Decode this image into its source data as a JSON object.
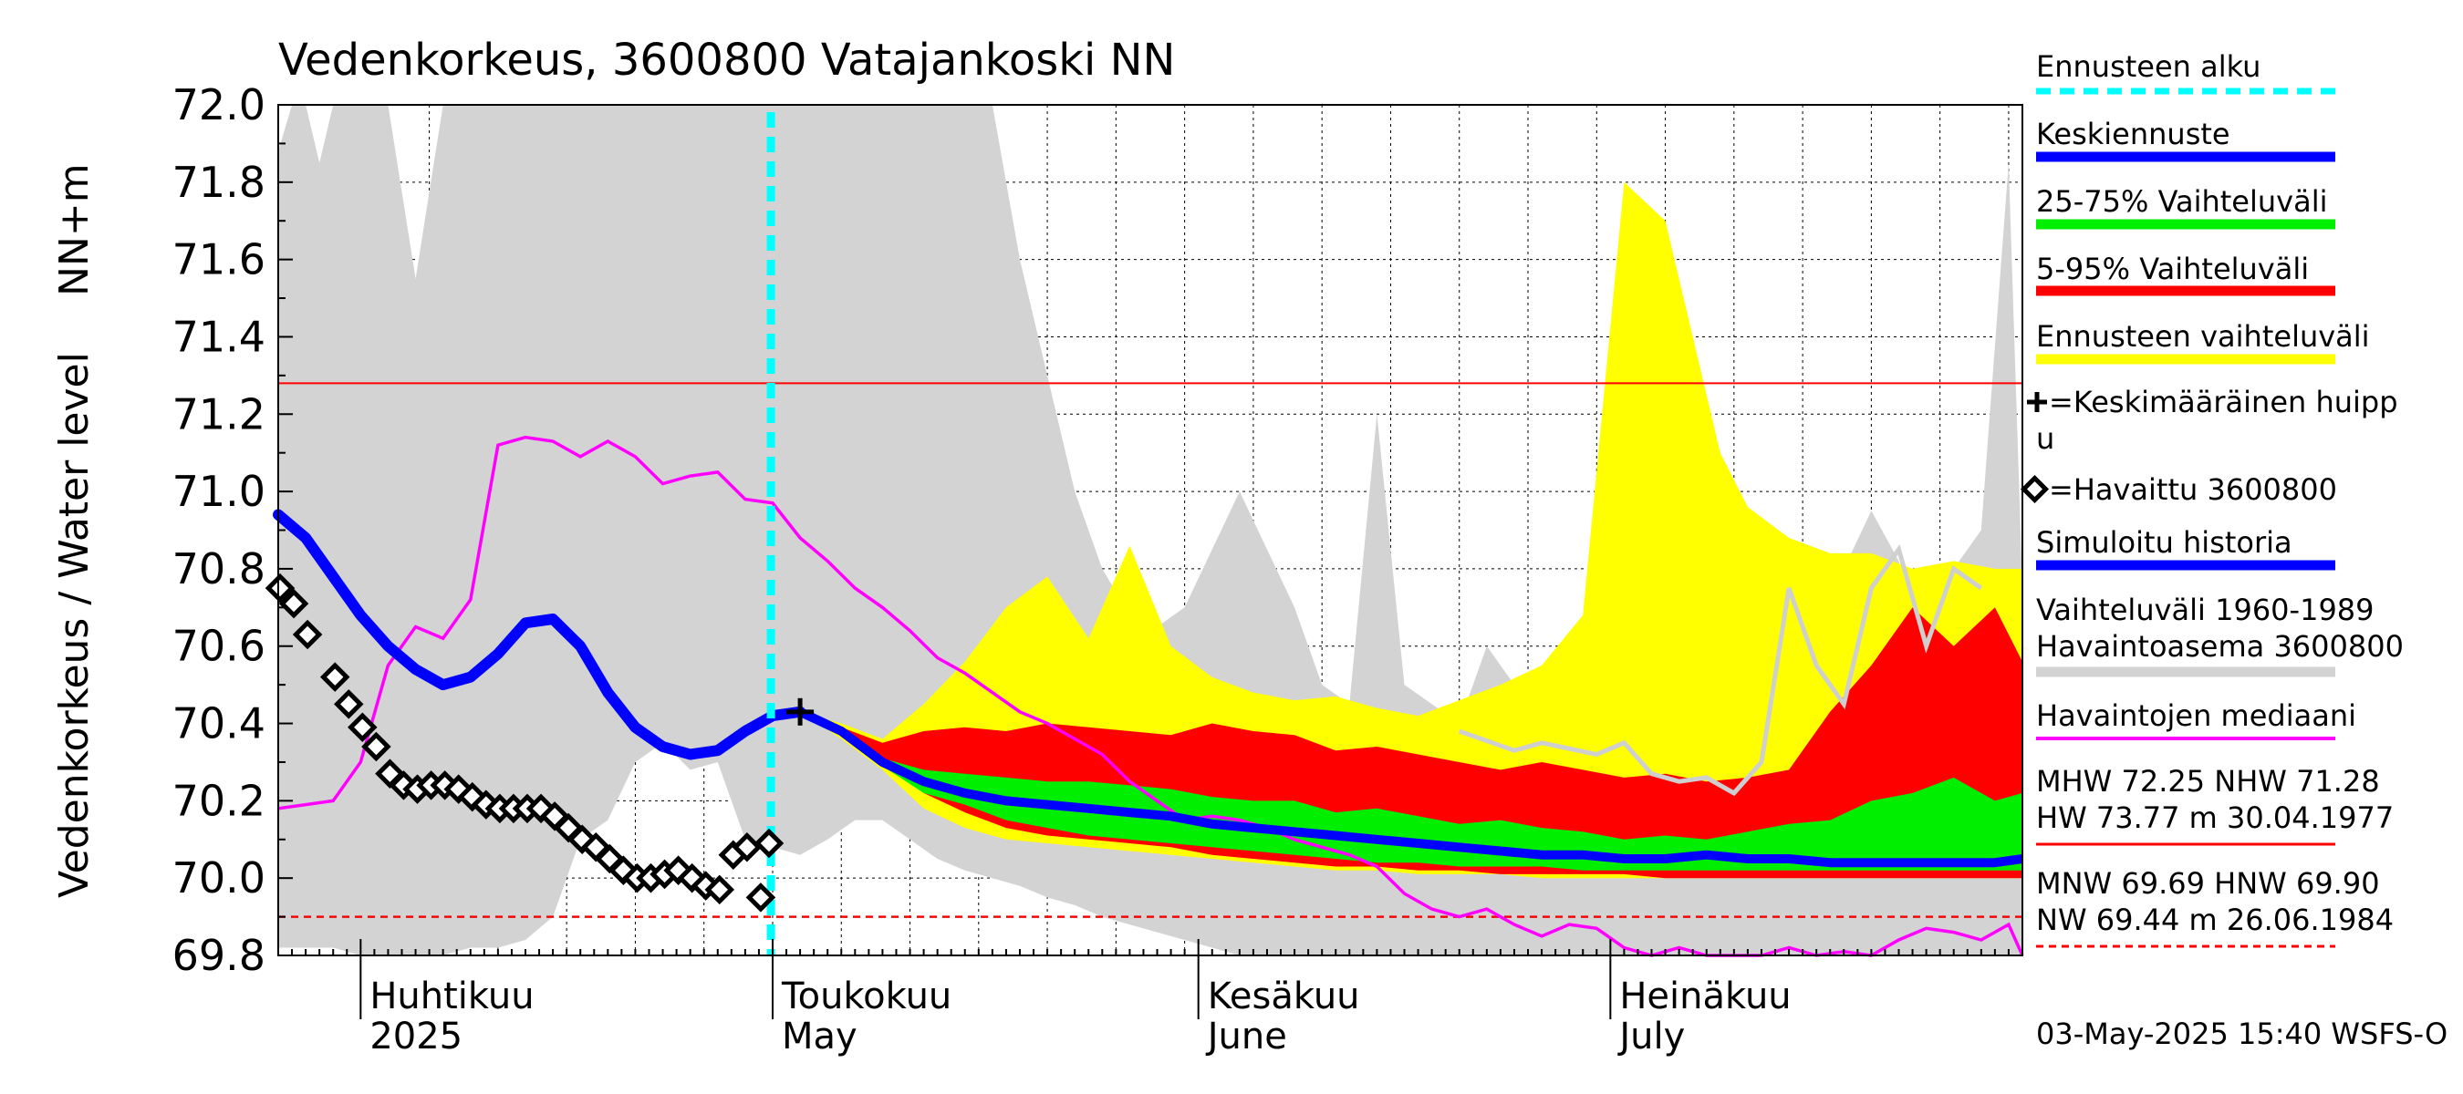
{
  "chart_data": {
    "type": "area",
    "title": "Vedenkorkeus, 3600800 Vatajankoski NN",
    "ylabel_left": "Vedenkorkeus / Water level",
    "ylabel_unit": "NN+m",
    "ylim": [
      69.8,
      72.0
    ],
    "xlim": [
      "2025-03-26",
      "2025-07-31"
    ],
    "y_ticks": [
      "69.8",
      "70.0",
      "70.2",
      "70.4",
      "70.6",
      "70.8",
      "71.0",
      "71.2",
      "71.4",
      "71.6",
      "71.8",
      "72.0"
    ],
    "month_labels": [
      {
        "fi": "Huhtikuu",
        "en": "2025",
        "date": "2025-04-01"
      },
      {
        "fi": "Toukokuu",
        "en": "May",
        "date": "2025-05-01"
      },
      {
        "fi": "Kesäkuu",
        "en": "June",
        "date": "2025-06-01"
      },
      {
        "fi": "Heinäkuu",
        "en": "July",
        "date": "2025-07-01"
      }
    ],
    "grid": true,
    "forecast_start": "2025-05-03",
    "reference_lines": {
      "mhw": 71.28,
      "mnw": 69.9
    },
    "legend": {
      "forecast_start": "Ennusteen alku",
      "mean_forecast": "Keskiennuste",
      "band_25_75": "25-75% Vaihteluväli",
      "band_5_95": "5-95% Vaihteluväli",
      "band_forecast": "Ennusteen vaihteluväli",
      "mean_peak_line1": "=Keskimääräinen huipp",
      "mean_peak_line2": "u",
      "observed": "=Havaittu 3600800",
      "simulated": "Simuloitu historia",
      "hist_range_line1": "Vaihteluväli 1960-1989",
      "hist_range_line2": " Havaintoasema 3600800",
      "median": "Havaintojen mediaani",
      "stats_line1": "MHW  72.25 NHW  71.28",
      "stats_line2": "HW  73.77 m 30.04.1977",
      "stats_line3": "MNW  69.69 HNW  69.90",
      "stats_line4": "NW  69.44 m 26.06.1984"
    },
    "footer": "03-May-2025 15:40 WSFS-O",
    "colors": {
      "forecast_start": "#00ffff",
      "mean_forecast": "#0000ff",
      "band_25_75": "#00ee00",
      "band_5_95": "#ff0000",
      "band_forecast": "#ffff00",
      "hist_range": "#d3d3d3",
      "median": "#ff00ff",
      "observed": "#000000"
    },
    "mean_peak": {
      "date": "2025-05-03",
      "value": 70.43
    },
    "series": {
      "hist_range": {
        "dates": [
          "2025-03-26",
          "2025-03-27",
          "2025-03-28",
          "2025-03-29",
          "2025-03-30",
          "2025-04-01",
          "2025-04-03",
          "2025-04-05",
          "2025-04-07",
          "2025-04-09",
          "2025-04-11",
          "2025-04-13",
          "2025-04-15",
          "2025-04-17",
          "2025-04-19",
          "2025-04-21",
          "2025-04-23",
          "2025-04-25",
          "2025-04-27",
          "2025-04-29",
          "2025-05-01",
          "2025-05-03",
          "2025-05-05",
          "2025-05-07",
          "2025-05-09",
          "2025-05-11",
          "2025-05-13",
          "2025-05-15",
          "2025-05-17",
          "2025-05-19",
          "2025-05-21",
          "2025-05-23",
          "2025-05-25",
          "2025-05-27",
          "2025-05-29",
          "2025-05-31",
          "2025-06-02",
          "2025-06-04",
          "2025-06-06",
          "2025-06-08",
          "2025-06-10",
          "2025-06-12",
          "2025-06-14",
          "2025-06-16",
          "2025-06-18",
          "2025-06-20",
          "2025-06-22",
          "2025-06-24",
          "2025-06-26",
          "2025-06-28",
          "2025-06-30",
          "2025-07-02",
          "2025-07-04",
          "2025-07-06",
          "2025-07-08",
          "2025-07-10",
          "2025-07-12",
          "2025-07-14",
          "2025-07-16",
          "2025-07-18",
          "2025-07-20",
          "2025-07-22",
          "2025-07-24",
          "2025-07-26",
          "2025-07-28",
          "2025-07-30",
          "2025-07-31"
        ],
        "upper": [
          71.88,
          72.0,
          72.0,
          71.85,
          72.0,
          72.0,
          72.0,
          71.55,
          72.0,
          72.0,
          72.0,
          72.0,
          72.0,
          72.0,
          72.0,
          72.0,
          72.0,
          72.0,
          72.0,
          72.0,
          72.0,
          72.0,
          72.0,
          72.0,
          72.0,
          72.0,
          72.0,
          72.0,
          72.0,
          71.6,
          71.3,
          71.0,
          70.8,
          70.68,
          70.65,
          70.7,
          70.85,
          71.0,
          70.85,
          70.7,
          70.5,
          70.45,
          71.2,
          70.5,
          70.45,
          70.4,
          70.6,
          70.5,
          70.45,
          70.5,
          70.45,
          70.35,
          70.3,
          70.32,
          70.35,
          70.45,
          70.85,
          70.6,
          70.55,
          70.8,
          70.95,
          70.82,
          70.6,
          70.8,
          70.9,
          71.85,
          70.75
        ],
        "lower": [
          69.82,
          69.82,
          69.82,
          69.82,
          69.82,
          69.8,
          69.8,
          69.8,
          69.8,
          69.82,
          69.82,
          69.84,
          69.9,
          70.1,
          70.15,
          70.3,
          70.35,
          70.28,
          70.3,
          70.1,
          70.08,
          70.06,
          70.1,
          70.15,
          70.15,
          70.1,
          70.05,
          70.02,
          70.0,
          69.98,
          69.95,
          69.93,
          69.9,
          69.88,
          69.86,
          69.84,
          69.82,
          69.8,
          69.8,
          69.8,
          69.8,
          69.8,
          69.8,
          69.8,
          69.8,
          69.8,
          69.8,
          69.8,
          69.8,
          69.8,
          69.8,
          69.8,
          69.8,
          69.8,
          69.8,
          69.8,
          69.8,
          69.8,
          69.8,
          69.8,
          69.8,
          69.8,
          69.8,
          69.8,
          69.8,
          69.8,
          69.8
        ]
      },
      "hist_station": {
        "dates": [
          "2025-06-20",
          "2025-06-24",
          "2025-06-26",
          "2025-06-30",
          "2025-07-02",
          "2025-07-04",
          "2025-07-06",
          "2025-07-08",
          "2025-07-10",
          "2025-07-12",
          "2025-07-14",
          "2025-07-16",
          "2025-07-18",
          "2025-07-20",
          "2025-07-22",
          "2025-07-24",
          "2025-07-26",
          "2025-07-28"
        ],
        "values": [
          70.38,
          70.33,
          70.35,
          70.32,
          70.35,
          70.27,
          70.25,
          70.26,
          70.22,
          70.3,
          70.75,
          70.55,
          70.45,
          70.75,
          70.85,
          70.6,
          70.8,
          70.75
        ]
      },
      "forecast_band": {
        "dates": [
          "2025-05-03",
          "2025-05-06",
          "2025-05-09",
          "2025-05-12",
          "2025-05-15",
          "2025-05-18",
          "2025-05-21",
          "2025-05-24",
          "2025-05-27",
          "2025-05-30",
          "2025-06-02",
          "2025-06-05",
          "2025-06-08",
          "2025-06-11",
          "2025-06-14",
          "2025-06-17",
          "2025-06-20",
          "2025-06-23",
          "2025-06-26",
          "2025-06-29",
          "2025-07-02",
          "2025-07-05",
          "2025-07-07",
          "2025-07-09",
          "2025-07-11",
          "2025-07-14",
          "2025-07-17",
          "2025-07-20",
          "2025-07-23",
          "2025-07-26",
          "2025-07-29",
          "2025-07-31"
        ],
        "upper": [
          70.43,
          70.4,
          70.36,
          70.45,
          70.56,
          70.7,
          70.78,
          70.62,
          70.86,
          70.6,
          70.52,
          70.48,
          70.46,
          70.47,
          70.44,
          70.42,
          70.46,
          70.5,
          70.55,
          70.68,
          71.8,
          71.7,
          71.4,
          71.1,
          70.96,
          70.88,
          70.84,
          70.84,
          70.8,
          70.82,
          70.8,
          70.8
        ],
        "lower": [
          70.43,
          70.36,
          70.28,
          70.18,
          70.13,
          70.1,
          70.09,
          70.08,
          70.07,
          70.06,
          70.05,
          70.04,
          70.03,
          70.02,
          70.02,
          70.01,
          70.01,
          70.01,
          70.0,
          70.0,
          70.0,
          70.0,
          70.0,
          70.0,
          70.0,
          70.0,
          70.0,
          70.0,
          70.0,
          70.0,
          70.0,
          70.0
        ]
      },
      "band_5_95": {
        "dates": [
          "2025-05-03",
          "2025-05-06",
          "2025-05-09",
          "2025-05-12",
          "2025-05-15",
          "2025-05-18",
          "2025-05-21",
          "2025-05-24",
          "2025-05-27",
          "2025-05-30",
          "2025-06-02",
          "2025-06-05",
          "2025-06-08",
          "2025-06-11",
          "2025-06-14",
          "2025-06-17",
          "2025-06-20",
          "2025-06-23",
          "2025-06-26",
          "2025-06-29",
          "2025-07-02",
          "2025-07-05",
          "2025-07-08",
          "2025-07-11",
          "2025-07-14",
          "2025-07-17",
          "2025-07-20",
          "2025-07-23",
          "2025-07-26",
          "2025-07-29",
          "2025-07-31"
        ],
        "upper": [
          70.43,
          70.39,
          70.35,
          70.38,
          70.39,
          70.38,
          70.4,
          70.39,
          70.38,
          70.37,
          70.4,
          70.38,
          70.37,
          70.33,
          70.34,
          70.32,
          70.3,
          70.28,
          70.3,
          70.28,
          70.26,
          70.27,
          70.25,
          70.26,
          70.28,
          70.43,
          70.55,
          70.7,
          70.6,
          70.7,
          70.56
        ],
        "lower": [
          70.43,
          70.37,
          70.3,
          70.22,
          70.17,
          70.13,
          70.11,
          70.1,
          70.09,
          70.08,
          70.06,
          70.05,
          70.04,
          70.03,
          70.03,
          70.02,
          70.02,
          70.01,
          70.01,
          70.01,
          70.01,
          70.0,
          70.0,
          70.0,
          70.0,
          70.0,
          70.0,
          70.0,
          70.0,
          70.0,
          70.0
        ]
      },
      "band_25_75": {
        "dates": [
          "2025-05-03",
          "2025-05-06",
          "2025-05-09",
          "2025-05-12",
          "2025-05-15",
          "2025-05-18",
          "2025-05-21",
          "2025-05-24",
          "2025-05-27",
          "2025-05-30",
          "2025-06-02",
          "2025-06-05",
          "2025-06-08",
          "2025-06-11",
          "2025-06-14",
          "2025-06-17",
          "2025-06-20",
          "2025-06-23",
          "2025-06-26",
          "2025-06-29",
          "2025-07-02",
          "2025-07-05",
          "2025-07-08",
          "2025-07-11",
          "2025-07-14",
          "2025-07-17",
          "2025-07-20",
          "2025-07-23",
          "2025-07-26",
          "2025-07-29",
          "2025-07-31"
        ],
        "upper": [
          70.43,
          70.38,
          70.31,
          70.28,
          70.27,
          70.26,
          70.25,
          70.25,
          70.24,
          70.23,
          70.21,
          70.2,
          70.2,
          70.17,
          70.18,
          70.16,
          70.14,
          70.15,
          70.13,
          70.12,
          70.1,
          70.11,
          70.1,
          70.12,
          70.14,
          70.15,
          70.2,
          70.22,
          70.26,
          70.2,
          70.22
        ],
        "lower": [
          70.43,
          70.37,
          70.29,
          70.22,
          70.19,
          70.15,
          70.13,
          70.11,
          70.1,
          70.09,
          70.08,
          70.07,
          70.06,
          70.05,
          70.04,
          70.04,
          70.03,
          70.03,
          70.03,
          70.02,
          70.02,
          70.02,
          70.02,
          70.02,
          70.02,
          70.02,
          70.02,
          70.02,
          70.02,
          70.02,
          70.02
        ]
      },
      "mean_forecast": {
        "dates": [
          "2025-05-03",
          "2025-05-06",
          "2025-05-09",
          "2025-05-12",
          "2025-05-15",
          "2025-05-18",
          "2025-05-21",
          "2025-05-24",
          "2025-05-27",
          "2025-05-30",
          "2025-06-02",
          "2025-06-05",
          "2025-06-08",
          "2025-06-11",
          "2025-06-14",
          "2025-06-17",
          "2025-06-20",
          "2025-06-23",
          "2025-06-26",
          "2025-06-29",
          "2025-07-02",
          "2025-07-05",
          "2025-07-08",
          "2025-07-11",
          "2025-07-14",
          "2025-07-17",
          "2025-07-20",
          "2025-07-23",
          "2025-07-26",
          "2025-07-29",
          "2025-07-31"
        ],
        "values": [
          70.43,
          70.38,
          70.3,
          70.25,
          70.22,
          70.2,
          70.19,
          70.18,
          70.17,
          70.16,
          70.14,
          70.13,
          70.12,
          70.11,
          70.1,
          70.09,
          70.08,
          70.07,
          70.06,
          70.06,
          70.05,
          70.05,
          70.06,
          70.05,
          70.05,
          70.04,
          70.04,
          70.04,
          70.04,
          70.04,
          70.05
        ]
      },
      "simulated": {
        "dates": [
          "2025-03-26",
          "2025-03-28",
          "2025-03-30",
          "2025-04-01",
          "2025-04-03",
          "2025-04-05",
          "2025-04-07",
          "2025-04-09",
          "2025-04-11",
          "2025-04-13",
          "2025-04-15",
          "2025-04-17",
          "2025-04-19",
          "2025-04-21",
          "2025-04-23",
          "2025-04-25",
          "2025-04-27",
          "2025-04-29",
          "2025-05-01",
          "2025-05-03"
        ],
        "values": [
          70.94,
          70.88,
          70.78,
          70.68,
          70.6,
          70.54,
          70.5,
          70.52,
          70.58,
          70.66,
          70.67,
          70.6,
          70.48,
          70.39,
          70.34,
          70.32,
          70.33,
          70.38,
          70.42,
          70.43
        ]
      },
      "median": {
        "dates": [
          "2025-03-26",
          "2025-03-28",
          "2025-03-30",
          "2025-04-01",
          "2025-04-03",
          "2025-04-05",
          "2025-04-07",
          "2025-04-09",
          "2025-04-11",
          "2025-04-13",
          "2025-04-15",
          "2025-04-17",
          "2025-04-19",
          "2025-04-21",
          "2025-04-23",
          "2025-04-25",
          "2025-04-27",
          "2025-04-29",
          "2025-05-01",
          "2025-05-03",
          "2025-05-05",
          "2025-05-07",
          "2025-05-09",
          "2025-05-11",
          "2025-05-13",
          "2025-05-15",
          "2025-05-17",
          "2025-05-19",
          "2025-05-21",
          "2025-05-23",
          "2025-05-25",
          "2025-05-27",
          "2025-05-29",
          "2025-05-31",
          "2025-06-02",
          "2025-06-04",
          "2025-06-06",
          "2025-06-08",
          "2025-06-10",
          "2025-06-12",
          "2025-06-14",
          "2025-06-16",
          "2025-06-18",
          "2025-06-20",
          "2025-06-22",
          "2025-06-24",
          "2025-06-26",
          "2025-06-28",
          "2025-06-30",
          "2025-07-02",
          "2025-07-04",
          "2025-07-06",
          "2025-07-08",
          "2025-07-10",
          "2025-07-12",
          "2025-07-14",
          "2025-07-16",
          "2025-07-18",
          "2025-07-20",
          "2025-07-22",
          "2025-07-24",
          "2025-07-26",
          "2025-07-28",
          "2025-07-30",
          "2025-07-31"
        ],
        "values": [
          70.18,
          70.19,
          70.2,
          70.3,
          70.55,
          70.65,
          70.62,
          70.72,
          71.12,
          71.14,
          71.13,
          71.09,
          71.13,
          71.09,
          71.02,
          71.04,
          71.05,
          70.98,
          70.97,
          70.88,
          70.82,
          70.75,
          70.7,
          70.64,
          70.57,
          70.53,
          70.48,
          70.43,
          70.4,
          70.36,
          70.32,
          70.25,
          70.2,
          70.15,
          70.16,
          70.15,
          70.13,
          70.1,
          70.08,
          70.06,
          70.03,
          69.96,
          69.92,
          69.9,
          69.92,
          69.88,
          69.85,
          69.88,
          69.87,
          69.82,
          69.8,
          69.82,
          69.8,
          69.8,
          69.8,
          69.82,
          69.8,
          69.81,
          69.8,
          69.84,
          69.87,
          69.86,
          69.84,
          69.88,
          69.8
        ]
      },
      "observed": {
        "dates": [
          "2025-03-26",
          "2025-03-27",
          "2025-03-28",
          "2025-03-30",
          "2025-03-31",
          "2025-04-01",
          "2025-04-02",
          "2025-04-03",
          "2025-04-04",
          "2025-04-05",
          "2025-04-06",
          "2025-04-07",
          "2025-04-08",
          "2025-04-09",
          "2025-04-10",
          "2025-04-11",
          "2025-04-12",
          "2025-04-13",
          "2025-04-14",
          "2025-04-15",
          "2025-04-16",
          "2025-04-17",
          "2025-04-18",
          "2025-04-19",
          "2025-04-20",
          "2025-04-21",
          "2025-04-22",
          "2025-04-23",
          "2025-04-24",
          "2025-04-25",
          "2025-04-26",
          "2025-04-27",
          "2025-04-28",
          "2025-04-29",
          "2025-04-30"
        ],
        "values": [
          70.75,
          70.71,
          70.63,
          70.52,
          70.45,
          70.39,
          70.34,
          70.27,
          70.24,
          70.23,
          70.24,
          70.24,
          70.23,
          70.21,
          70.19,
          70.18,
          70.18,
          70.18,
          70.18,
          70.16,
          70.13,
          70.1,
          70.08,
          70.05,
          70.02,
          70.0,
          70.0,
          70.01,
          70.02,
          70.0,
          69.98,
          69.97,
          70.06,
          70.08,
          69.95
        ]
      },
      "observed_last": {
        "date": "2025-05-01",
        "value": 70.09
      }
    }
  }
}
